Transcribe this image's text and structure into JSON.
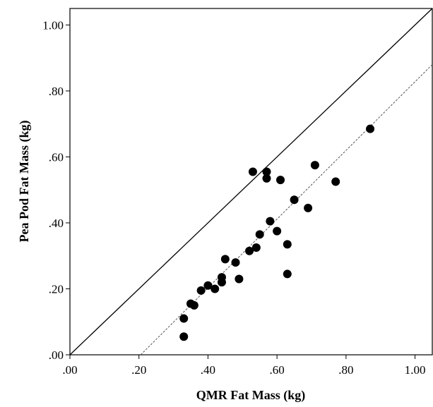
{
  "chart_data": {
    "type": "scatter",
    "title": "",
    "xlabel": "QMR Fat Mass (kg)",
    "ylabel": "Pea Pod Fat Mass (kg)",
    "xlim": [
      0.0,
      1.05
    ],
    "ylim": [
      0.0,
      1.05
    ],
    "xticks": [
      ".00",
      ".20",
      ".40",
      ".60",
      ".80",
      "1.00"
    ],
    "yticks": [
      ".00",
      ".20",
      ".40",
      ".60",
      ".80",
      "1.00"
    ],
    "grid": false,
    "legend": "none",
    "colors": {
      "marker": "#000000",
      "identity_line": "#000000",
      "fit_line": "#555555"
    },
    "series": [
      {
        "points": [
          [
            0.33,
            0.055
          ],
          [
            0.33,
            0.11
          ],
          [
            0.35,
            0.155
          ],
          [
            0.36,
            0.15
          ],
          [
            0.38,
            0.195
          ],
          [
            0.4,
            0.21
          ],
          [
            0.42,
            0.2
          ],
          [
            0.44,
            0.22
          ],
          [
            0.44,
            0.235
          ],
          [
            0.45,
            0.29
          ],
          [
            0.48,
            0.28
          ],
          [
            0.49,
            0.23
          ],
          [
            0.52,
            0.315
          ],
          [
            0.53,
            0.555
          ],
          [
            0.54,
            0.325
          ],
          [
            0.55,
            0.365
          ],
          [
            0.57,
            0.555
          ],
          [
            0.57,
            0.535
          ],
          [
            0.58,
            0.405
          ],
          [
            0.6,
            0.375
          ],
          [
            0.61,
            0.53
          ],
          [
            0.63,
            0.335
          ],
          [
            0.63,
            0.245
          ],
          [
            0.65,
            0.47
          ],
          [
            0.69,
            0.445
          ],
          [
            0.71,
            0.575
          ],
          [
            0.77,
            0.525
          ],
          [
            0.87,
            0.685
          ]
        ]
      }
    ],
    "reference_lines": [
      {
        "style": "solid",
        "from": [
          0.0,
          0.0
        ],
        "to": [
          1.05,
          1.05
        ]
      },
      {
        "style": "dashed",
        "from": [
          0.205,
          0.0
        ],
        "to": [
          1.05,
          0.88
        ]
      }
    ]
  }
}
